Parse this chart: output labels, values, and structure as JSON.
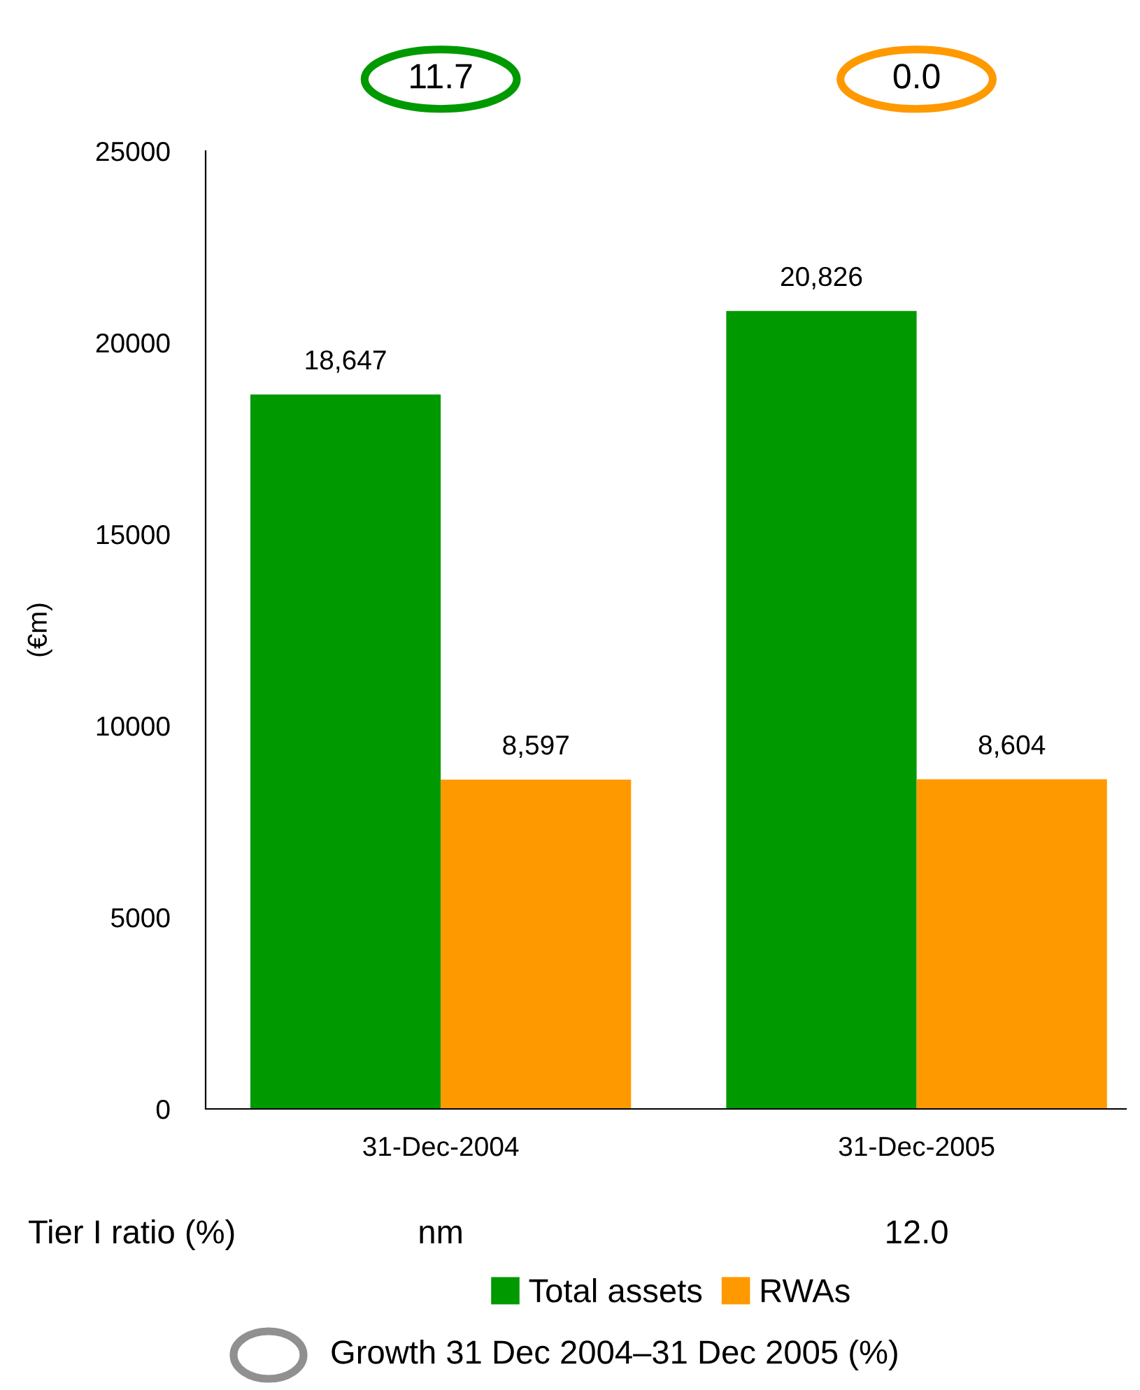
{
  "chart_data": {
    "type": "bar",
    "ylabel": "(€m)",
    "categories": [
      "31-Dec-2004",
      "31-Dec-2005"
    ],
    "series": [
      {
        "name": "Total assets",
        "color": "#009900",
        "values": [
          18647,
          20826
        ],
        "value_labels": [
          "18,647",
          "20,826"
        ]
      },
      {
        "name": "RWAs",
        "color": "#ff9900",
        "values": [
          8597,
          8604
        ],
        "value_labels": [
          "8,597",
          "8,604"
        ]
      }
    ],
    "ylim": [
      0,
      25000
    ],
    "yticks": [
      0,
      5000,
      10000,
      15000,
      20000,
      25000
    ],
    "grid": false,
    "legend": "bottom",
    "annotations": [
      "11.7",
      "0.0",
      "Tier I ratio (%)",
      "nm",
      "12.0",
      "Growth 31 Dec 2004–31 Dec 2005 (%)"
    ]
  }
}
